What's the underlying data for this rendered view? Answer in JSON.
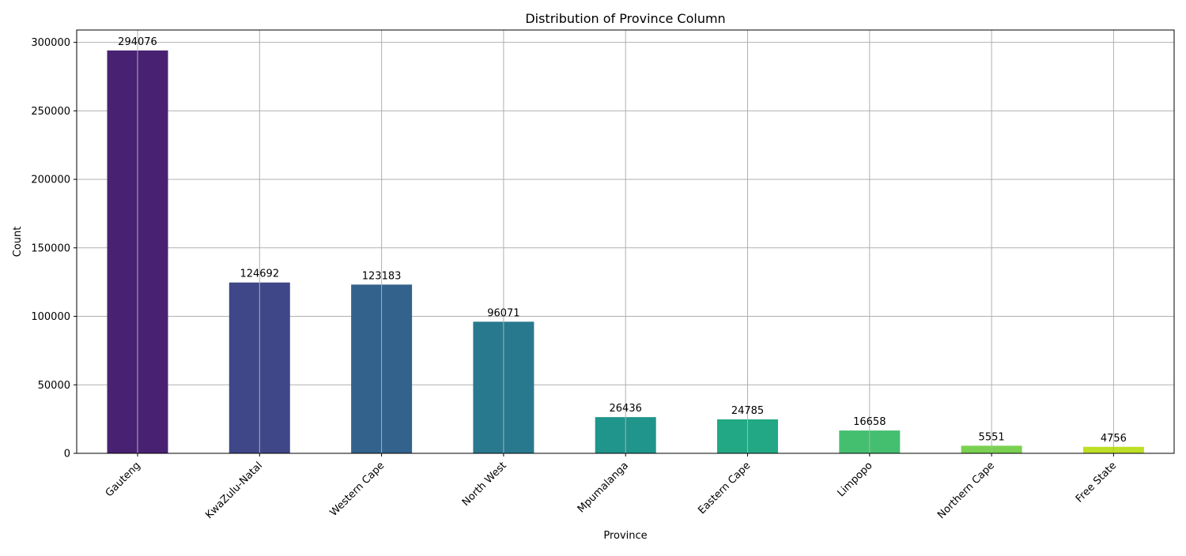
{
  "chart_data": {
    "type": "bar",
    "title": "Distribution of Province Column",
    "xlabel": "Province",
    "ylabel": "Count",
    "categories": [
      "Gauteng",
      "KwaZulu-Natal",
      "Western Cape",
      "North West",
      "Mpumalanga",
      "Eastern Cape",
      "Limpopo",
      "Northern Cape",
      "Free State"
    ],
    "values": [
      294076,
      124692,
      123183,
      96071,
      26436,
      24785,
      16658,
      5551,
      4756
    ],
    "value_labels": [
      "294076",
      "124692",
      "123183",
      "96071",
      "26436",
      "24785",
      "16658",
      "5551",
      "4756"
    ],
    "yticks": [
      0,
      50000,
      100000,
      150000,
      200000,
      250000,
      300000
    ],
    "ytick_labels": [
      "0",
      "50000",
      "100000",
      "150000",
      "200000",
      "250000",
      "300000"
    ],
    "ylim": [
      0,
      309000
    ],
    "grid": true,
    "legend": "none",
    "colors": [
      "#482173",
      "#3f4788",
      "#33638d",
      "#29798e",
      "#1f958b",
      "#22a884",
      "#44bf70",
      "#7ad151",
      "#bddf26"
    ]
  }
}
